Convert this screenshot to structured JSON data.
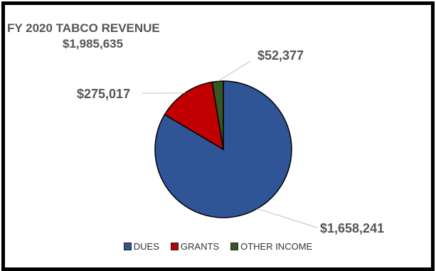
{
  "chart_data": {
    "type": "pie",
    "title": "FY 2020 TABCO REVENUE",
    "subtitle": "$1,985,635",
    "categories": [
      "DUES",
      "GRANTS",
      "OTHER INCOME"
    ],
    "values": [
      1658241,
      275017,
      52377
    ],
    "data_labels": [
      "$1,658,241",
      "$275,017",
      "$52,377"
    ],
    "colors": [
      "#2F5597",
      "#C00000",
      "#375623"
    ],
    "legend_position": "bottom"
  }
}
